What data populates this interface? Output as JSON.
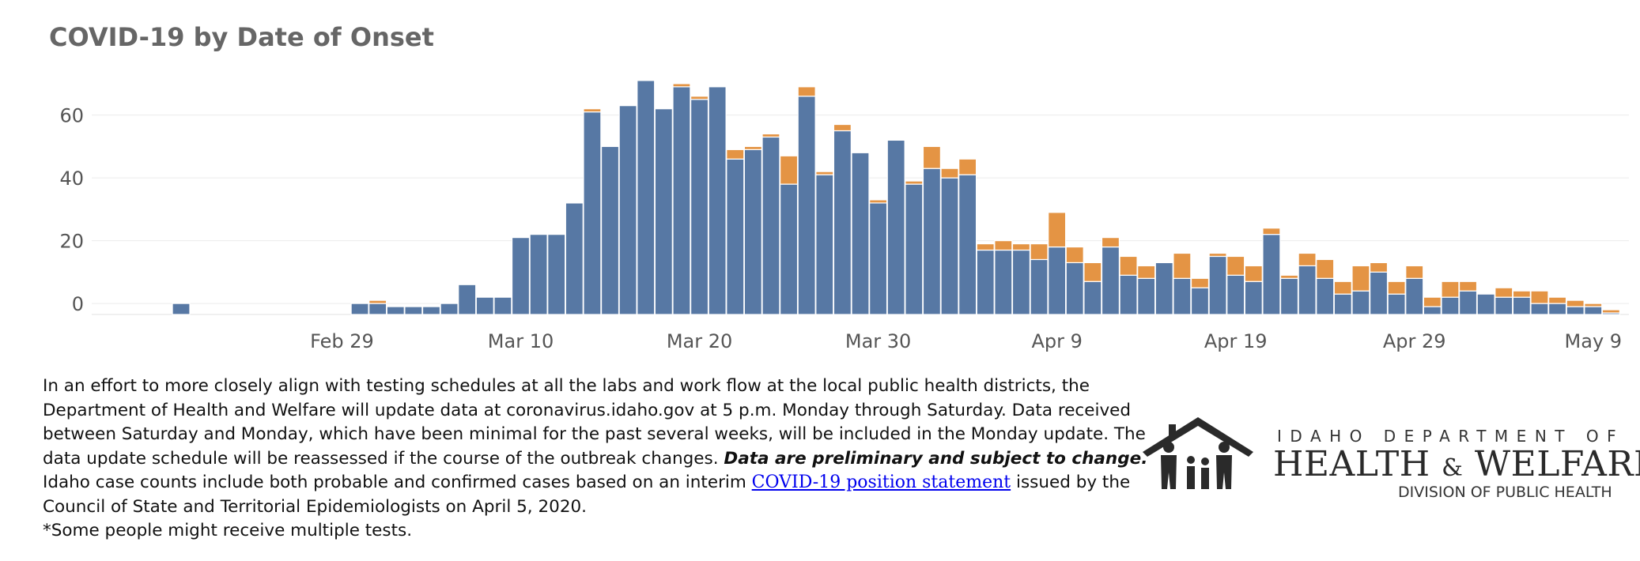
{
  "page": {
    "title": "COVID-19 by Date of Onset"
  },
  "chart_data": {
    "type": "bar",
    "stacked": true,
    "title": "COVID-19 by Date of Onset",
    "xlabel": "",
    "ylabel": "",
    "ylim": [
      -3.5,
      75
    ],
    "yticks": [
      0,
      20,
      40,
      60
    ],
    "xtick_labels": [
      {
        "date": "2020-02-29",
        "label": "Feb 29"
      },
      {
        "date": "2020-03-10",
        "label": "Mar 10"
      },
      {
        "date": "2020-03-20",
        "label": "Mar 20"
      },
      {
        "date": "2020-03-30",
        "label": "Mar 30"
      },
      {
        "date": "2020-04-09",
        "label": "Apr 9"
      },
      {
        "date": "2020-04-19",
        "label": "Apr 19"
      },
      {
        "date": "2020-04-29",
        "label": "Apr 29"
      },
      {
        "date": "2020-05-09",
        "label": "May 9"
      }
    ],
    "xlim": [
      "2020-02-15",
      "2020-05-11"
    ],
    "grid": true,
    "colors": {
      "confirmed": "#5778a4",
      "probable": "#e49444"
    },
    "x": [
      "2020-02-20",
      "2020-03-01",
      "2020-03-02",
      "2020-03-03",
      "2020-03-04",
      "2020-03-05",
      "2020-03-06",
      "2020-03-07",
      "2020-03-08",
      "2020-03-09",
      "2020-03-10",
      "2020-03-11",
      "2020-03-12",
      "2020-03-13",
      "2020-03-14",
      "2020-03-15",
      "2020-03-16",
      "2020-03-17",
      "2020-03-18",
      "2020-03-19",
      "2020-03-20",
      "2020-03-21",
      "2020-03-22",
      "2020-03-23",
      "2020-03-24",
      "2020-03-25",
      "2020-03-26",
      "2020-03-27",
      "2020-03-28",
      "2020-03-29",
      "2020-03-30",
      "2020-03-31",
      "2020-04-01",
      "2020-04-02",
      "2020-04-03",
      "2020-04-04",
      "2020-04-05",
      "2020-04-06",
      "2020-04-07",
      "2020-04-08",
      "2020-04-09",
      "2020-04-10",
      "2020-04-11",
      "2020-04-12",
      "2020-04-13",
      "2020-04-14",
      "2020-04-15",
      "2020-04-16",
      "2020-04-17",
      "2020-04-18",
      "2020-04-19",
      "2020-04-20",
      "2020-04-21",
      "2020-04-22",
      "2020-04-23",
      "2020-04-24",
      "2020-04-25",
      "2020-04-26",
      "2020-04-27",
      "2020-04-28",
      "2020-04-29",
      "2020-04-30",
      "2020-05-01",
      "2020-05-02",
      "2020-05-03",
      "2020-05-04",
      "2020-05-05",
      "2020-05-06",
      "2020-05-07",
      "2020-05-08",
      "2020-05-09",
      "2020-05-10"
    ],
    "series": [
      {
        "key": "confirmed",
        "values": [
          0,
          0,
          0,
          -1,
          -1,
          -1,
          0,
          6,
          2,
          2,
          21,
          22,
          22,
          32,
          61,
          50,
          63,
          71,
          62,
          69,
          65,
          69,
          46,
          49,
          53,
          38,
          66,
          41,
          55,
          48,
          32,
          52,
          38,
          43,
          40,
          41,
          17,
          17,
          17,
          14,
          18,
          13,
          7,
          18,
          9,
          8,
          13,
          8,
          5,
          15,
          9,
          7,
          22,
          8,
          12,
          8,
          3,
          4,
          10,
          3,
          8,
          -1,
          2,
          4,
          3,
          2,
          2,
          0,
          0,
          -1,
          -1,
          -3
        ],
        "counts": [
          1,
          3,
          3,
          2,
          2,
          2,
          3,
          9,
          5,
          5,
          24,
          25,
          25,
          35,
          64,
          53,
          66,
          74,
          65,
          72,
          68,
          72,
          49,
          52,
          56,
          41,
          69,
          44,
          58,
          51,
          35,
          55,
          41,
          46,
          43,
          44,
          20,
          20,
          21,
          17,
          21,
          16,
          10,
          21,
          12,
          11,
          16,
          11,
          8,
          18,
          12,
          10,
          25,
          11,
          15,
          11,
          6,
          7,
          13,
          6,
          11,
          2,
          5,
          7,
          6,
          5,
          5,
          3,
          3,
          2,
          2,
          0
        ]
      },
      {
        "key": "probable",
        "values": [
          0,
          0,
          1,
          0,
          0,
          0,
          0,
          0,
          0,
          0,
          0,
          0,
          0,
          0,
          1,
          0,
          0,
          0,
          0,
          1,
          1,
          0,
          3,
          1,
          1,
          9,
          3,
          1,
          2,
          0,
          1,
          0,
          1,
          7,
          3,
          5,
          2,
          3,
          2,
          5,
          11,
          5,
          6,
          3,
          6,
          4,
          0,
          8,
          3,
          1,
          6,
          5,
          2,
          1,
          4,
          6,
          4,
          8,
          3,
          4,
          4,
          3,
          5,
          3,
          0,
          3,
          2,
          4,
          2,
          2,
          1,
          1
        ]
      }
    ]
  },
  "note": {
    "p1_a": "In an effort to more closely align with testing schedules at all the labs and work flow at the local public health districts, the Department of Health and Welfare will update data at coronavirus.idaho.gov at 5 p.m. Monday through Saturday. Data received between Saturday and Monday, which have been minimal for the past several weeks, will be included in the Monday update. The data update schedule will be reassessed if the course of the outbreak changes.",
    "p1_em": "Data are preliminary and subject to change.",
    "p1_b": "Idaho case counts include both probable and confirmed cases based on an interim",
    "link": "COVID-19 position statement",
    "p1_c": "issued by the Council of State and Territorial Epidemiologists on April 5, 2020.",
    "p2": "*Some people might receive multiple tests."
  },
  "logo": {
    "line1": "IDAHO DEPARTMENT OF",
    "line2a": "HEALTH",
    "amp": "&",
    "line2b": "WELFARE",
    "line3": "DIVISION OF PUBLIC HEALTH"
  }
}
